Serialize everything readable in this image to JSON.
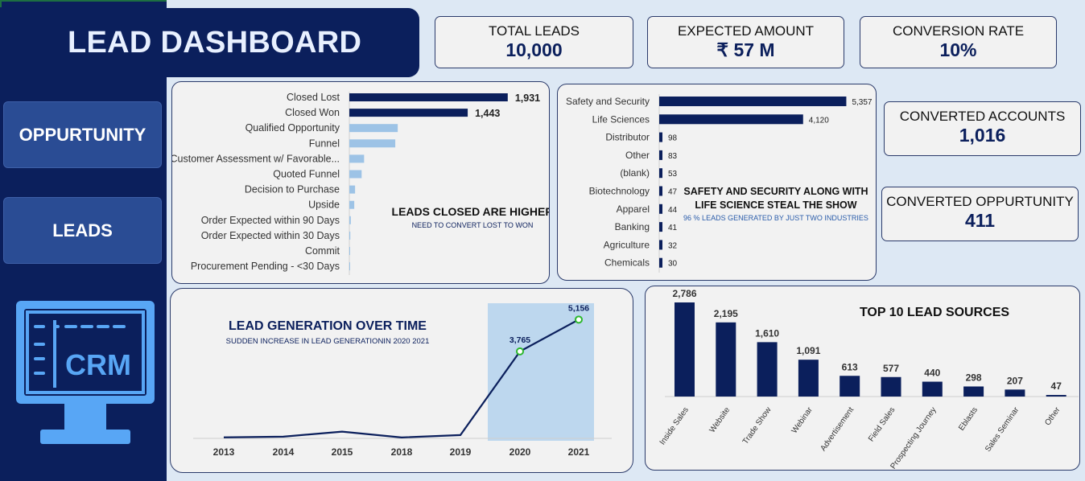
{
  "title": "LEAD DASHBOARD",
  "nav": [
    {
      "label": "OPPURTUNITY"
    },
    {
      "label": "LEADS"
    }
  ],
  "kpis": {
    "total_leads": {
      "label": "TOTAL LEADS",
      "value": "10,000"
    },
    "expected_amount": {
      "label": "EXPECTED AMOUNT",
      "value": "₹ 57 M"
    },
    "conversion_rate": {
      "label": "CONVERSION RATE",
      "value": "10%"
    },
    "converted_accounts": {
      "label": "CONVERTED ACCOUNTS",
      "value": "1,016"
    },
    "converted_oppurtunity": {
      "label": "CONVERTED OPPURTUNITY",
      "value": "411"
    }
  },
  "crm_icon": {
    "text": "CRM",
    "icon": "computer-monitor-icon"
  },
  "colors": {
    "navy": "#0b1f5c",
    "light_bar": "#9dc3e6",
    "highlight": "#bdd7ee",
    "accent_green": "#2eb82e"
  },
  "stages_panel": {
    "callout_title": "LEADS CLOSED ARE HIGHER",
    "callout_sub": "NEED TO CONVERT LOST TO WON"
  },
  "industry_panel": {
    "callout_title_1": "SAFETY AND SECURITY ALONG WITH",
    "callout_title_2": "LIFE SCIENCE STEAL THE SHOW",
    "callout_sub": "96 % LEADS GENERATED BY JUST TWO INDUSTRIES"
  },
  "time_panel": {
    "title": "LEAD GENERATION OVER TIME",
    "subtitle": "SUDDEN INCREASE IN LEAD GENERATIONIN 2020 2021"
  },
  "sources_panel": {
    "title": "TOP 10 LEAD SOURCES"
  },
  "chart_data": [
    {
      "type": "bar",
      "orientation": "horizontal",
      "categories": [
        "Closed Lost",
        "Closed Won",
        "Qualified Opportunity",
        "Funnel",
        "Customer Assessment w/ Favorable...",
        "Quoted Funnel",
        "Decision to Purchase",
        "Upside",
        "Order Expected within 90 Days",
        "Order Expected within 30 Days",
        "Commit",
        "Procurement Pending - <30 Days"
      ],
      "values": [
        1931,
        1443,
        590,
        560,
        180,
        150,
        70,
        60,
        18,
        12,
        5,
        2
      ],
      "labels_shown": [
        "1,931",
        "1,443"
      ],
      "highlight_count": 2,
      "xlim": [
        0,
        2600
      ]
    },
    {
      "type": "bar",
      "orientation": "horizontal",
      "categories": [
        "Safety and Security",
        "Life Sciences",
        "Distributor",
        "Other",
        "(blank)",
        "Biotechnology",
        "Apparel",
        "Banking",
        "Agriculture",
        "Chemicals"
      ],
      "values": [
        5357,
        4120,
        98,
        83,
        53,
        47,
        44,
        41,
        32,
        30
      ],
      "labels": [
        "5,357",
        "4,120",
        "98",
        "83",
        "53",
        "47",
        "44",
        "41",
        "32",
        "30"
      ],
      "xlim": [
        0,
        5900
      ]
    },
    {
      "type": "line",
      "x": [
        "2013",
        "2014",
        "2015",
        "2018",
        "2019",
        "2020",
        "2021"
      ],
      "values": [
        10,
        40,
        260,
        5,
        110,
        3765,
        5156
      ],
      "labels_shown": [
        "3,765",
        "5,156"
      ],
      "highlight_x": [
        "2020",
        "2021"
      ],
      "ylim": [
        0,
        5800
      ]
    },
    {
      "type": "bar",
      "orientation": "vertical",
      "categories": [
        "Inside Sales",
        "Website",
        "Trade Show",
        "Webinar",
        "Advertisement",
        "Field Sales",
        "Prospecting Journey",
        "Eblasts",
        "Sales Seminar",
        "Other"
      ],
      "values": [
        2786,
        2195,
        1610,
        1091,
        613,
        577,
        440,
        298,
        207,
        47
      ],
      "labels": [
        "2,786",
        "2,195",
        "1,610",
        "1,091",
        "613",
        "577",
        "440",
        "298",
        "207",
        "47"
      ],
      "ylim": [
        0,
        2786
      ]
    }
  ]
}
